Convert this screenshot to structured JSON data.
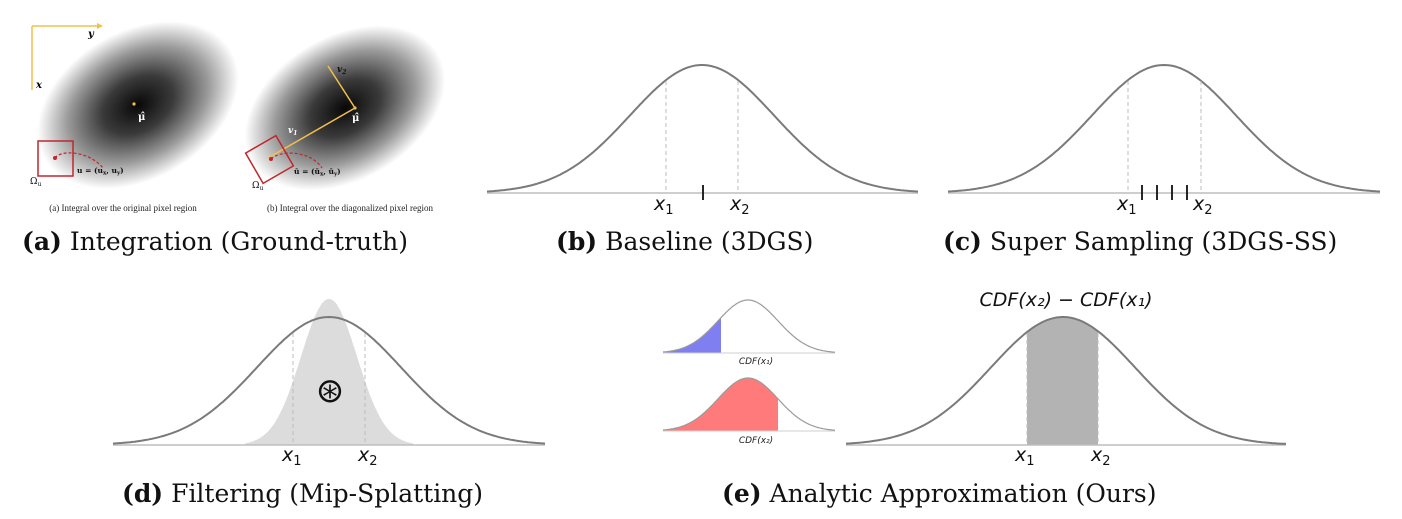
{
  "panels": {
    "a": {
      "caption_letter": "(a)",
      "caption_text": "Integration (Ground-truth)",
      "left": {
        "axis_y": "y",
        "axis_x": "x",
        "mu": "μ̂",
        "u_label": "u = (u",
        "u_x": "x",
        "u_mid": ", u",
        "u_y": "y",
        "u_end": ")",
        "omega": "Ω",
        "omega_sub": "u",
        "subcaption": "(a) Integral over the original pixel region"
      },
      "right": {
        "v1": "v",
        "v1_sub": "1",
        "v2": "v",
        "v2_sub": "2",
        "mu": "μ̂",
        "u_label": "ū = (ū",
        "u_x": "x",
        "u_mid": ", ū",
        "u_y": "y",
        "u_end": ")",
        "omega": "Ω",
        "omega_sub": "u",
        "subcaption": "(b) Integral over the diagonalized pixel region"
      }
    },
    "b": {
      "caption_letter": "(b)",
      "caption_text": "Baseline (3DGS)",
      "x1": "x",
      "x1_sub": "1",
      "x2": "x",
      "x2_sub": "2"
    },
    "c": {
      "caption_letter": "(c)",
      "caption_text": "Super Sampling (3DGS-SS)",
      "x1": "x",
      "x1_sub": "1",
      "x2": "x",
      "x2_sub": "2"
    },
    "d": {
      "caption_letter": "(d)",
      "caption_text": "Filtering (Mip-Splatting)",
      "conv_symbol": "⊛",
      "x1": "x",
      "x1_sub": "1",
      "x2": "x",
      "x2_sub": "2"
    },
    "e": {
      "caption_letter": "(e)",
      "caption_text": "Analytic Approximation (Ours)",
      "formula": "CDF(x₂) − CDF(x₁)",
      "cdf1_label": "CDF(x₁)",
      "cdf2_label": "CDF(x₂)",
      "x1": "x",
      "x1_sub": "1",
      "x2": "x",
      "x2_sub": "2"
    }
  },
  "colors": {
    "curve": "#7a7a7a",
    "cdf1_fill": "#7f7ff2",
    "cdf2_fill": "#ff7b7b",
    "area_fill": "#b3b3b3",
    "filter_fill": "#dcdcdc",
    "pixel_box": "#c0272d",
    "axes": "#f2c04a"
  }
}
